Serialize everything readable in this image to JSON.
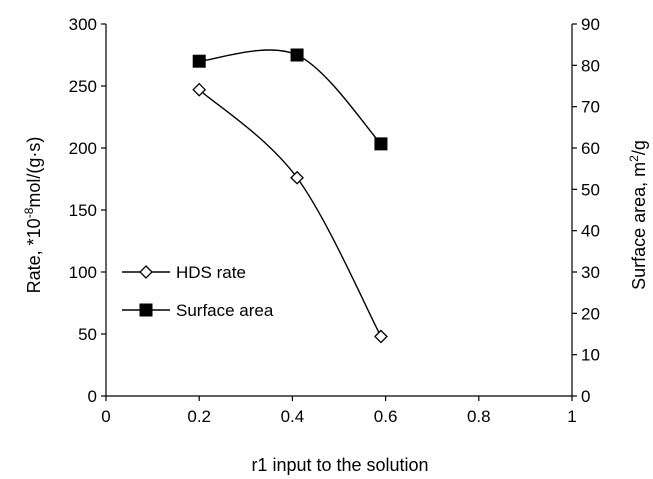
{
  "chart_data": {
    "type": "line",
    "xlabel": "r1 input to the solution",
    "ylabel_left": "Rate, *10",
    "ylabel_left_sup": "-8",
    "ylabel_left_tail": "mol/(g·s)",
    "ylabel_right": "Surface area, m",
    "ylabel_right_sup": "2",
    "ylabel_right_tail": "/g",
    "xlim": [
      0,
      1
    ],
    "ylim_left": [
      0,
      300
    ],
    "ylim_right": [
      0,
      90
    ],
    "x_ticks": [
      "0",
      "0.2",
      "0.4",
      "0.6",
      "0.8",
      "1"
    ],
    "y_left_ticks": [
      "0",
      "50",
      "100",
      "150",
      "200",
      "250",
      "300"
    ],
    "y_right_ticks": [
      "0",
      "10",
      "20",
      "30",
      "40",
      "50",
      "60",
      "70",
      "80",
      "90"
    ],
    "grid": false,
    "legend_placement": "center-left",
    "series": [
      {
        "name": "HDS rate",
        "axis": "left",
        "marker": "open-diamond",
        "x": [
          0.2,
          0.41,
          0.59
        ],
        "values": [
          247,
          176,
          48
        ]
      },
      {
        "name": "Surface area",
        "axis": "right",
        "marker": "filled-square",
        "x": [
          0.2,
          0.41,
          0.59
        ],
        "values": [
          81,
          82.5,
          61
        ]
      }
    ]
  }
}
